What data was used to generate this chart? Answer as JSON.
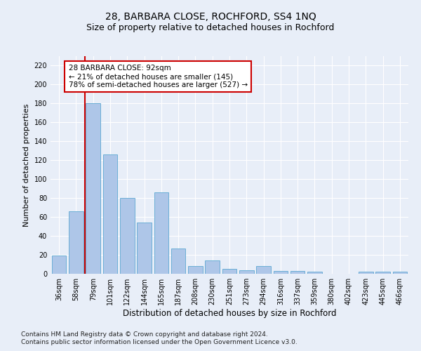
{
  "title1": "28, BARBARA CLOSE, ROCHFORD, SS4 1NQ",
  "title2": "Size of property relative to detached houses in Rochford",
  "xlabel": "Distribution of detached houses by size in Rochford",
  "ylabel": "Number of detached properties",
  "categories": [
    "36sqm",
    "58sqm",
    "79sqm",
    "101sqm",
    "122sqm",
    "144sqm",
    "165sqm",
    "187sqm",
    "208sqm",
    "230sqm",
    "251sqm",
    "273sqm",
    "294sqm",
    "316sqm",
    "337sqm",
    "359sqm",
    "380sqm",
    "402sqm",
    "423sqm",
    "445sqm",
    "466sqm"
  ],
  "values": [
    19,
    66,
    180,
    126,
    80,
    54,
    86,
    27,
    8,
    14,
    5,
    4,
    8,
    3,
    3,
    2,
    0,
    0,
    2,
    2,
    2
  ],
  "bar_color": "#aec6e8",
  "bar_edge_color": "#6baed6",
  "property_line_color": "#cc0000",
  "annotation_text": "28 BARBARA CLOSE: 92sqm\n← 21% of detached houses are smaller (145)\n78% of semi-detached houses are larger (527) →",
  "annotation_box_color": "#ffffff",
  "annotation_box_edge": "#cc0000",
  "ylim": [
    0,
    230
  ],
  "yticks": [
    0,
    20,
    40,
    60,
    80,
    100,
    120,
    140,
    160,
    180,
    200,
    220
  ],
  "footer1": "Contains HM Land Registry data © Crown copyright and database right 2024.",
  "footer2": "Contains public sector information licensed under the Open Government Licence v3.0.",
  "background_color": "#e8eef8",
  "grid_color": "#ffffff",
  "title1_fontsize": 10,
  "title2_fontsize": 9,
  "tick_fontsize": 7,
  "ylabel_fontsize": 8,
  "xlabel_fontsize": 8.5,
  "footer_fontsize": 6.5,
  "annot_fontsize": 7.5
}
